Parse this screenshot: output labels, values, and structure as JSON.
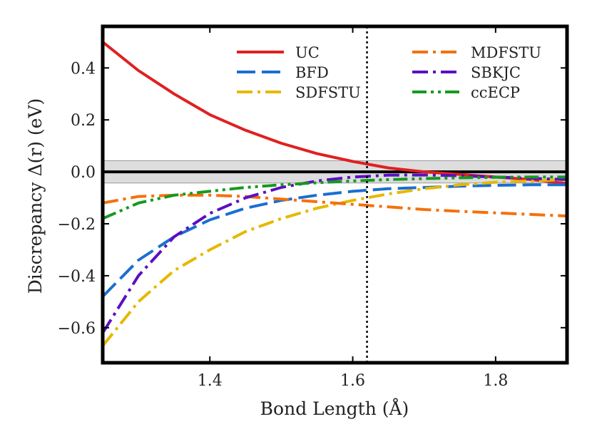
{
  "chart_data": {
    "type": "line",
    "title": "",
    "xlabel": "Bond Length (Å)",
    "ylabel": "Discrepancy Δ(r) (eV)",
    "xlim": [
      1.25,
      1.9
    ],
    "ylim": [
      -0.735,
      0.56
    ],
    "xticks": [
      1.4,
      1.6,
      1.8
    ],
    "xtick_labels": [
      "1.4",
      "1.6",
      "1.8"
    ],
    "yticks": [
      -0.6,
      -0.4,
      -0.2,
      0.0,
      0.2,
      0.4
    ],
    "ytick_labels": [
      "−0.6",
      "−0.4",
      "−0.2",
      "0.0",
      "0.2",
      "0.4"
    ],
    "reference_line": 0.0,
    "accuracy_band": [
      -0.043,
      0.043
    ],
    "equilibrium_marker": 1.62,
    "legend_position": "top-right",
    "x": [
      1.25,
      1.3,
      1.35,
      1.4,
      1.45,
      1.5,
      1.55,
      1.6,
      1.65,
      1.7,
      1.75,
      1.8,
      1.85,
      1.9
    ],
    "series": [
      {
        "name": "UC",
        "color": "#e02020",
        "dash": "solid",
        "values": [
          0.5,
          0.39,
          0.3,
          0.22,
          0.16,
          0.11,
          0.07,
          0.04,
          0.015,
          0.0,
          -0.01,
          -0.02,
          -0.03,
          -0.045
        ]
      },
      {
        "name": "BFD",
        "color": "#1a6fd1",
        "dash": "dashed",
        "values": [
          -0.48,
          -0.34,
          -0.25,
          -0.185,
          -0.14,
          -0.11,
          -0.09,
          -0.075,
          -0.065,
          -0.06,
          -0.055,
          -0.052,
          -0.05,
          -0.05
        ]
      },
      {
        "name": "SDFSTU",
        "color": "#e6b800",
        "dash": "dashdot",
        "values": [
          -0.67,
          -0.5,
          -0.38,
          -0.3,
          -0.23,
          -0.18,
          -0.14,
          -0.11,
          -0.085,
          -0.065,
          -0.05,
          -0.04,
          -0.035,
          -0.03
        ]
      },
      {
        "name": "MDFSTU",
        "color": "#f5700c",
        "dash": "dashdot",
        "values": [
          -0.12,
          -0.095,
          -0.09,
          -0.09,
          -0.095,
          -0.105,
          -0.115,
          -0.125,
          -0.135,
          -0.145,
          -0.152,
          -0.158,
          -0.164,
          -0.17
        ]
      },
      {
        "name": "SBKJC",
        "color": "#5b0fc2",
        "dash": "dashdot",
        "values": [
          -0.62,
          -0.4,
          -0.25,
          -0.16,
          -0.1,
          -0.06,
          -0.035,
          -0.02,
          -0.013,
          -0.012,
          -0.015,
          -0.02,
          -0.025,
          -0.03
        ]
      },
      {
        "name": "ccECP",
        "color": "#159a1f",
        "dash": "dashdotdot",
        "values": [
          -0.18,
          -0.12,
          -0.09,
          -0.075,
          -0.06,
          -0.05,
          -0.042,
          -0.035,
          -0.03,
          -0.026,
          -0.023,
          -0.021,
          -0.02,
          -0.02
        ]
      }
    ]
  }
}
